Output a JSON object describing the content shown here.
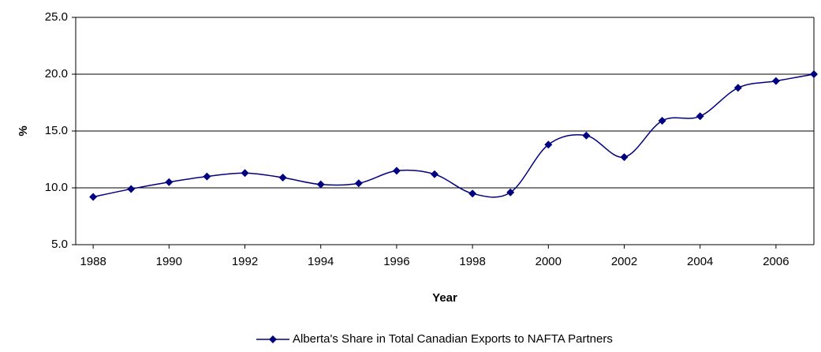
{
  "chart_data": {
    "type": "line",
    "x_label": "Year",
    "y_label": "%",
    "x": [
      1988,
      1989,
      1990,
      1991,
      1992,
      1993,
      1994,
      1995,
      1996,
      1997,
      1998,
      1999,
      2000,
      2001,
      2002,
      2003,
      2004,
      2005,
      2006,
      2007
    ],
    "series": [
      {
        "name": "Alberta's Share in Total Canadian Exports to NAFTA Partners",
        "color": "#000080",
        "values": [
          9.2,
          9.9,
          10.5,
          11.0,
          11.3,
          10.9,
          10.3,
          10.4,
          11.5,
          11.2,
          9.5,
          9.6,
          13.8,
          14.6,
          12.7,
          15.9,
          16.3,
          18.8,
          19.4,
          20.0
        ]
      }
    ],
    "xlim": [
      1987.54,
      2007
    ],
    "xticks": [
      1988,
      1990,
      1992,
      1994,
      1996,
      1998,
      2000,
      2002,
      2004,
      2006
    ],
    "ylim": [
      5,
      25
    ],
    "yticks": [
      {
        "value": 5,
        "label": "5.0"
      },
      {
        "value": 10,
        "label": "10.0"
      },
      {
        "value": 15,
        "label": "15.0"
      },
      {
        "value": 20,
        "label": "20.0"
      },
      {
        "value": 25,
        "label": "25.0"
      }
    ],
    "grid": true,
    "legend": "bottom"
  }
}
